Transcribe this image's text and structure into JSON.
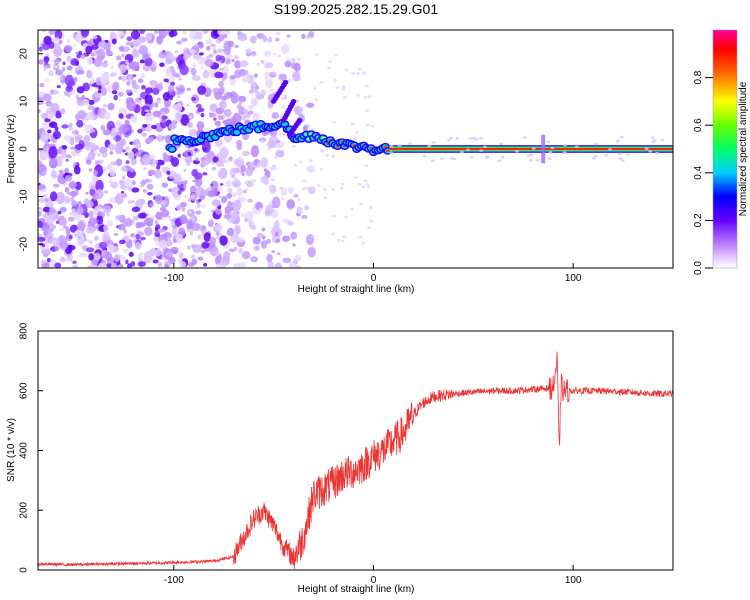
{
  "chart_data": [
    {
      "type": "heatmap",
      "title": "S199.2025.282.15.29.G01",
      "xlabel": "Height of straight line (km)",
      "ylabel": "Frequency (Hz)",
      "xlim": [
        -168,
        150
      ],
      "ylim": [
        -25,
        25
      ],
      "xticks": [
        -100,
        0,
        100
      ],
      "yticks": [
        -20,
        -10,
        0,
        10,
        20
      ],
      "colorbar": {
        "label": "Normalized spectral amplitude",
        "range": [
          0,
          1
        ],
        "ticks": [
          0.0,
          0.2,
          0.4,
          0.6,
          0.8
        ]
      },
      "ridge": {
        "x": [
          -100,
          -90,
          -80,
          -70,
          -60,
          -50,
          -45,
          -40,
          -35,
          -30,
          -25,
          -20,
          -15,
          -10,
          -5,
          0,
          5,
          10,
          50,
          100,
          150
        ],
        "frequency": [
          2,
          2,
          3,
          4,
          4.5,
          5,
          6,
          2,
          2.5,
          3,
          2,
          1.5,
          1,
          0.5,
          0.5,
          0,
          0,
          0,
          0,
          0,
          0
        ]
      }
    },
    {
      "type": "line",
      "xlabel": "Height of straight line (km)",
      "ylabel": "SNR (10 * v/v)",
      "xlim": [
        -168,
        150
      ],
      "ylim": [
        0,
        800
      ],
      "xticks": [
        -100,
        0,
        100
      ],
      "yticks": [
        0,
        200,
        400,
        600,
        800
      ],
      "series": [
        {
          "color": "#ee3333",
          "x": [
            -168,
            -150,
            -120,
            -100,
            -80,
            -70,
            -65,
            -60,
            -55,
            -50,
            -45,
            -40,
            -35,
            -30,
            -25,
            -20,
            -15,
            -10,
            -5,
            0,
            5,
            10,
            15,
            20,
            25,
            30,
            40,
            50,
            60,
            70,
            80,
            90,
            92,
            93,
            94,
            95,
            100,
            110,
            120,
            130,
            140,
            150
          ],
          "values": [
            20,
            18,
            22,
            25,
            30,
            45,
            110,
            170,
            200,
            150,
            80,
            40,
            110,
            250,
            270,
            290,
            320,
            330,
            350,
            380,
            400,
            430,
            460,
            520,
            560,
            580,
            590,
            595,
            600,
            600,
            605,
            610,
            700,
            400,
            620,
            600,
            600,
            600,
            598,
            595,
            590,
            590
          ]
        }
      ]
    }
  ]
}
